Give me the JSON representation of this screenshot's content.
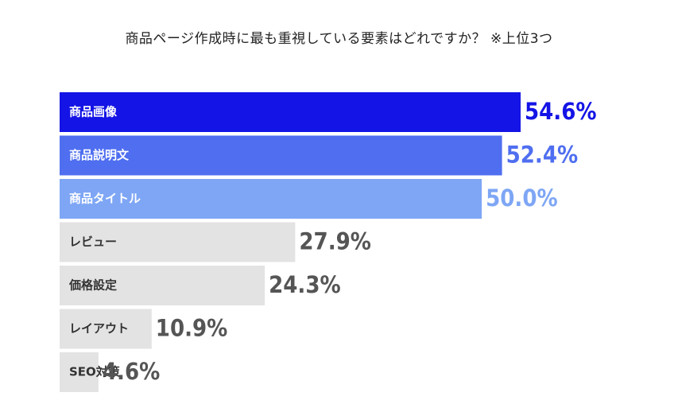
{
  "chart_data": {
    "type": "bar",
    "orientation": "horizontal",
    "title": "商品ページ作成時に最も重視している要素はどれですか？ ※上位3つ",
    "categories": [
      "商品画像",
      "商品説明文",
      "商品タイトル",
      "レビュー",
      "価格設定",
      "レイアウト",
      "SEO対策"
    ],
    "values": [
      54.6,
      52.4,
      50.0,
      27.9,
      24.3,
      10.9,
      4.6
    ],
    "value_labels": [
      "54.6%",
      "52.4%",
      "50.0%",
      "27.9%",
      "24.3%",
      "10.9%",
      "4.6%"
    ],
    "unit": "%",
    "xlim": [
      0,
      60
    ],
    "grid": false,
    "legend": false,
    "colors": {
      "bars": [
        "#1414e6",
        "#4f6ef0",
        "#7ea6f5",
        "#e3e3e3",
        "#e3e3e3",
        "#e3e3e3",
        "#e3e3e3"
      ],
      "labels": [
        "#ffffff",
        "#ffffff",
        "#ffffff",
        "#333333",
        "#333333",
        "#333333",
        "#333333"
      ],
      "values": [
        "#1414e6",
        "#4f6ef0",
        "#7ea6f5",
        "#555555",
        "#555555",
        "#555555",
        "#555555"
      ]
    }
  }
}
